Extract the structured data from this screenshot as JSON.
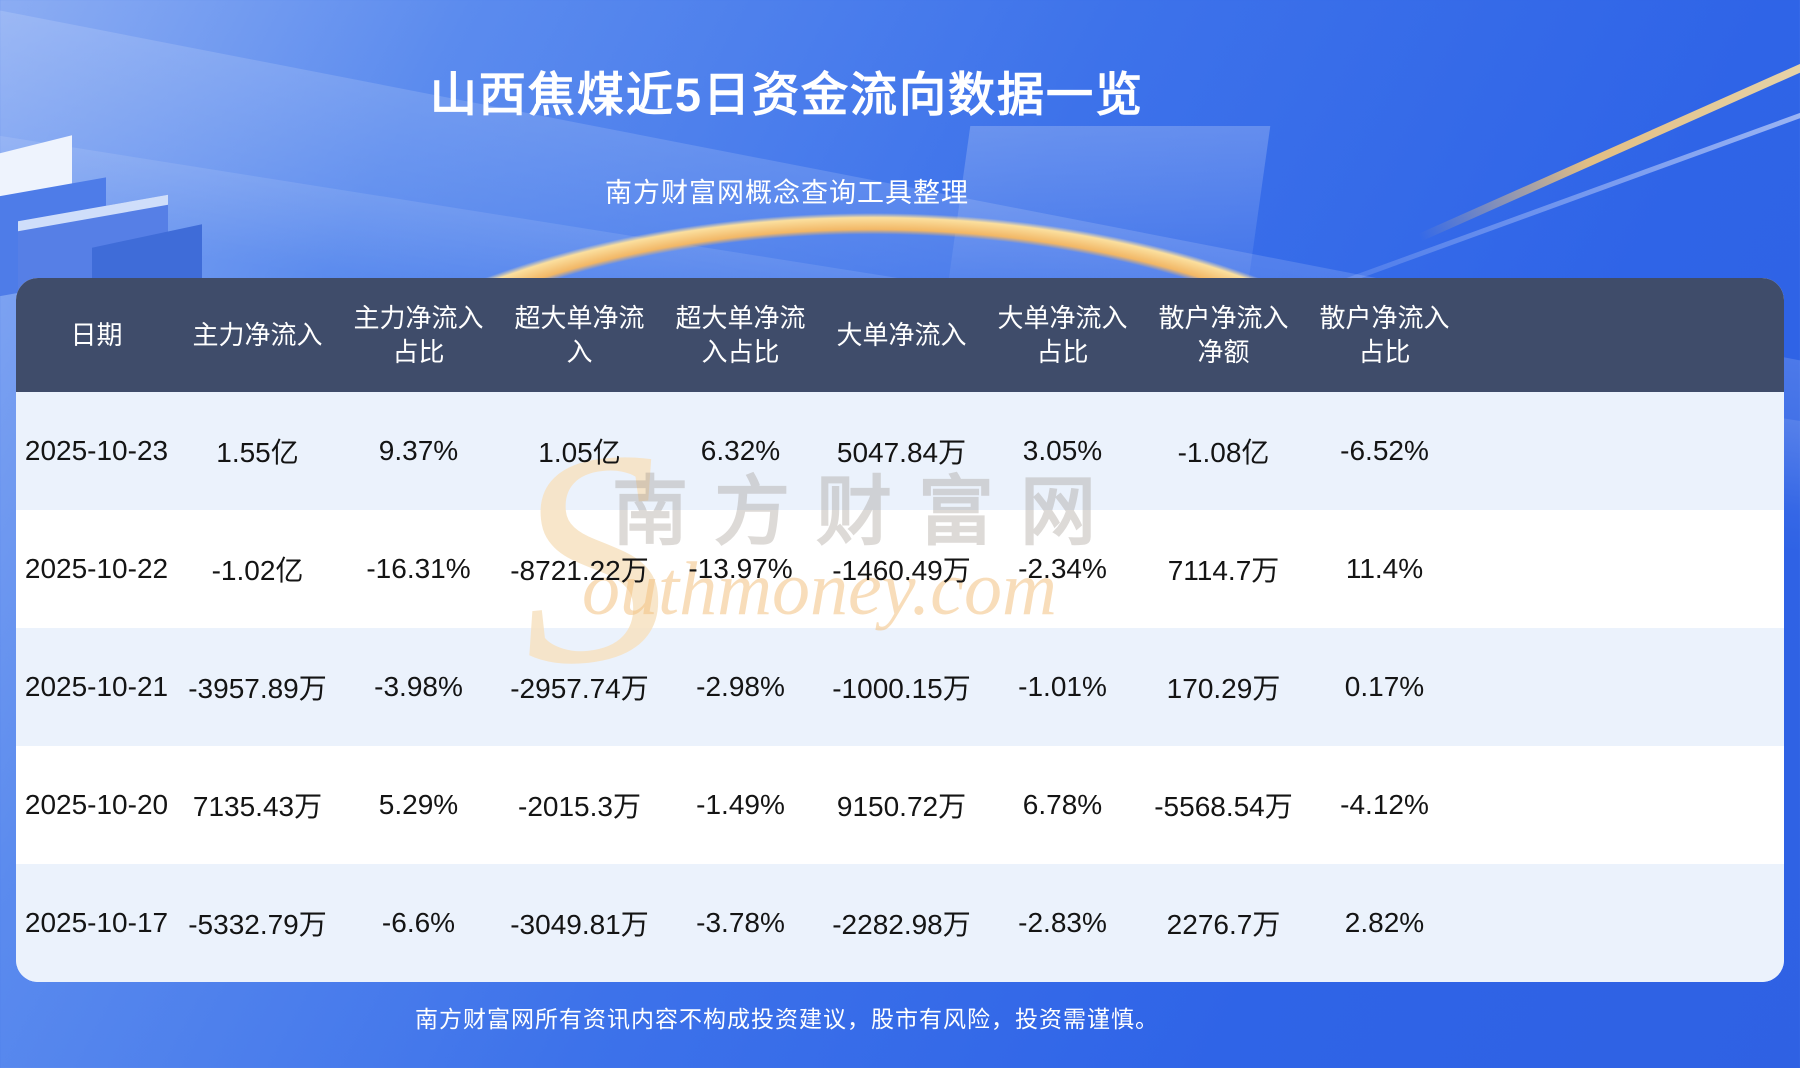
{
  "page": {
    "title": "山西焦煤近5日资金流向数据一览",
    "subtitle": "南方财富网概念查询工具整理",
    "disclaimer": "南方财富网所有资讯内容不构成投资建议，股市有风险，投资需谨慎。"
  },
  "watermark": {
    "big_s": "S",
    "brand_cn": "南方财富网",
    "brand_en": "outhmoney.com"
  },
  "colors": {
    "background_top": "#8cadf3",
    "background_bottom": "#2f61e3",
    "table_header_bg": "#3f4c6a",
    "row_odd": "#ebf2fc",
    "row_even": "#ffffff",
    "accent_gold": "#f6c878",
    "text_light": "#ffffff",
    "text_dark": "#141414"
  },
  "chart_data": {
    "type": "table",
    "title": "山西焦煤近5日资金流向数据一览",
    "columns": [
      "日期",
      "主力净流入",
      "主力净流入占比",
      "超大单净流入",
      "超大单净流入占比",
      "大单净流入",
      "大单净流入占比",
      "散户净流入净额",
      "散户净流入占比"
    ],
    "rows": [
      [
        "2025-10-23",
        "1.55亿",
        "9.37%",
        "1.05亿",
        "6.32%",
        "5047.84万",
        "3.05%",
        "-1.08亿",
        "-6.52%"
      ],
      [
        "2025-10-22",
        "-1.02亿",
        "-16.31%",
        "-8721.22万",
        "-13.97%",
        "-1460.49万",
        "-2.34%",
        "7114.7万",
        "11.4%"
      ],
      [
        "2025-10-21",
        "-3957.89万",
        "-3.98%",
        "-2957.74万",
        "-2.98%",
        "-1000.15万",
        "-1.01%",
        "170.29万",
        "0.17%"
      ],
      [
        "2025-10-20",
        "7135.43万",
        "5.29%",
        "-2015.3万",
        "-1.49%",
        "9150.72万",
        "6.78%",
        "-5568.54万",
        "-4.12%"
      ],
      [
        "2025-10-17",
        "-5332.79万",
        "-6.6%",
        "-3049.81万",
        "-3.78%",
        "-2282.98万",
        "-2.83%",
        "2276.7万",
        "2.82%"
      ]
    ]
  }
}
